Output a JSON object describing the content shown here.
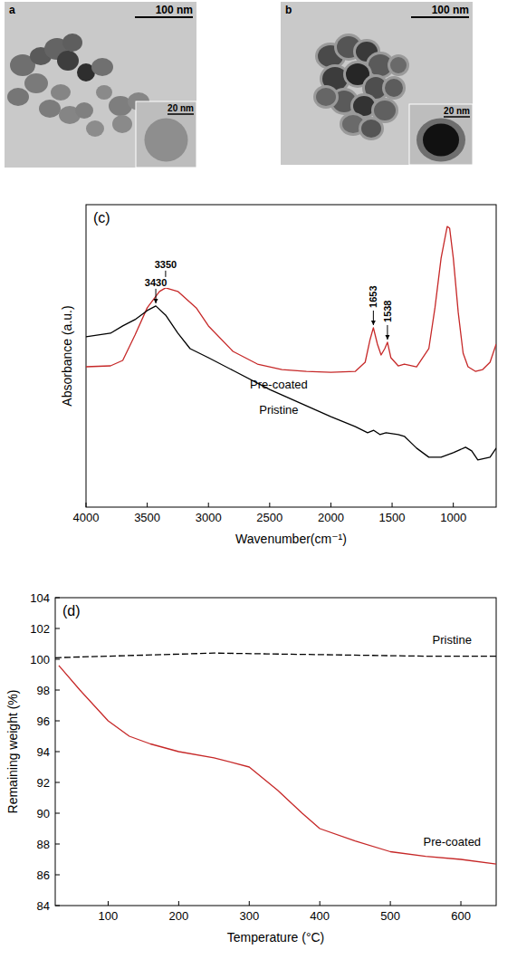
{
  "images": [
    {
      "label": "a",
      "scale_bar": "100 nm",
      "inset_scale_bar": "20 nm"
    },
    {
      "label": "b",
      "scale_bar": "100 nm",
      "inset_scale_bar": "20 nm"
    }
  ],
  "chart_data": [
    {
      "type": "line",
      "panel_label": "(c)",
      "xlabel": "Wavenumber(cm⁻¹)",
      "ylabel": "Absorbance (a.u.)",
      "xlim": [
        4000,
        650
      ],
      "xticks": [
        4000,
        3500,
        3000,
        2500,
        2000,
        1500,
        1000
      ],
      "ylim": [
        0,
        100
      ],
      "grid": false,
      "tick_labels": "x",
      "series": [
        {
          "name": "Pre-coated",
          "color": "#c62828",
          "line_style": "solid",
          "x": [
            4000,
            3800,
            3700,
            3600,
            3500,
            3400,
            3350,
            3250,
            3100,
            3000,
            2800,
            2600,
            2400,
            2200,
            2000,
            1800,
            1720,
            1680,
            1653,
            1620,
            1590,
            1560,
            1538,
            1510,
            1450,
            1400,
            1300,
            1200,
            1150,
            1100,
            1050,
            1030,
            1000,
            960,
            920,
            880,
            820,
            760,
            700,
            650
          ],
          "values": [
            46.4,
            46.7,
            48.5,
            56.9,
            65.9,
            71.3,
            72.5,
            71.3,
            65.9,
            59.9,
            51.5,
            47.3,
            45.5,
            44.9,
            44.6,
            44.9,
            47.9,
            55.4,
            59.3,
            53.9,
            50.3,
            52.4,
            54.5,
            49.4,
            46.7,
            47.3,
            46.4,
            52.4,
            65.9,
            82.3,
            92.8,
            92.2,
            82.3,
            64.4,
            50.9,
            46.4,
            44.9,
            45.5,
            47.9,
            53.9
          ]
        },
        {
          "name": "Pristine",
          "color": "#000000",
          "line_style": "solid",
          "x": [
            4000,
            3800,
            3700,
            3600,
            3500,
            3430,
            3350,
            3250,
            3150,
            3000,
            2800,
            2500,
            2200,
            2000,
            1800,
            1700,
            1650,
            1600,
            1550,
            1450,
            1400,
            1300,
            1200,
            1100,
            1000,
            900,
            850,
            800,
            700,
            650
          ],
          "values": [
            56.3,
            57.5,
            59.9,
            62.0,
            65.0,
            66.5,
            63.5,
            57.5,
            52.4,
            49.4,
            45.2,
            38.9,
            33.5,
            29.9,
            26.6,
            24.6,
            25.4,
            24.0,
            24.6,
            24.0,
            23.4,
            19.5,
            16.5,
            16.5,
            18.0,
            19.8,
            18.6,
            15.6,
            16.5,
            19.5
          ]
        }
      ],
      "annotations": [
        {
          "text": "3350",
          "x": 3350,
          "y": 72.5
        },
        {
          "text": "1653",
          "x": 1653,
          "y": 59.3
        },
        {
          "text": "1538",
          "x": 1538,
          "y": 54.5
        },
        {
          "text": "3430",
          "x": 3430,
          "y": 66.5
        }
      ]
    },
    {
      "type": "line",
      "panel_label": "(d)",
      "xlabel": "Temperature (°C)",
      "ylabel": "Remaining weight (%)",
      "xlim": [
        25,
        650
      ],
      "xticks": [
        100,
        200,
        300,
        400,
        500,
        600
      ],
      "ylim": [
        84,
        104
      ],
      "yticks": [
        84,
        86,
        88,
        90,
        92,
        94,
        96,
        98,
        100,
        102,
        104
      ],
      "grid": false,
      "series": [
        {
          "name": "Pristine",
          "color": "#000000",
          "line_style": "dashed",
          "x": [
            25,
            100,
            175,
            250,
            325,
            400,
            475,
            550,
            650
          ],
          "values": [
            100.1,
            100.2,
            100.3,
            100.4,
            100.35,
            100.3,
            100.25,
            100.2,
            100.2
          ]
        },
        {
          "name": "Pre-coated",
          "color": "#c62828",
          "line_style": "solid",
          "x": [
            30,
            60,
            100,
            130,
            160,
            200,
            250,
            300,
            340,
            375,
            400,
            450,
            500,
            550,
            600,
            650
          ],
          "values": [
            99.6,
            98.0,
            96.0,
            95.0,
            94.5,
            94.0,
            93.6,
            93.0,
            91.5,
            90.0,
            89.0,
            88.2,
            87.5,
            87.2,
            87.0,
            86.7
          ]
        }
      ]
    }
  ]
}
